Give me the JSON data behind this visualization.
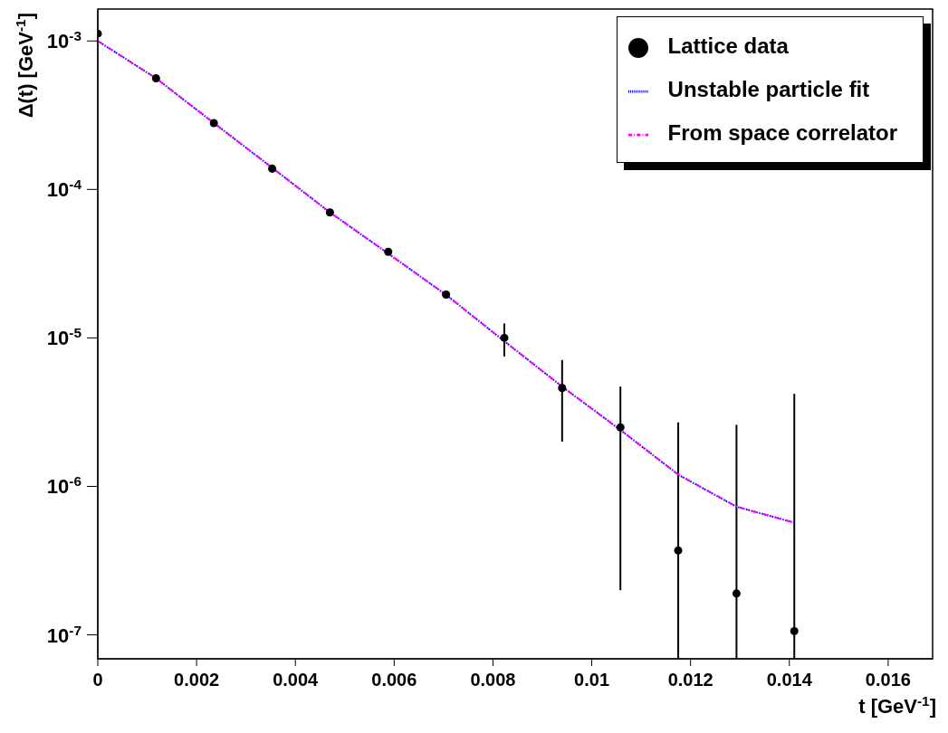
{
  "chart_data": {
    "type": "scatter",
    "xlabel": "t [GeV$^{-1}$]",
    "ylabel": "Δ(t) [GeV$^{-1}$]",
    "log": "y",
    "grid": false,
    "legend": "top right",
    "xlim": [
      0,
      0.0169
    ],
    "ylim": [
      6.9e-08,
      0.00164
    ],
    "xticks": [
      0,
      0.002,
      0.004,
      0.006,
      0.008,
      0.01,
      0.012,
      0.014,
      0.016
    ],
    "yticks": [
      {
        "value": 1e-07,
        "label": "10$^{-7}$"
      },
      {
        "value": 1e-06,
        "label": "10$^{-6}$"
      },
      {
        "value": 1e-05,
        "label": "10$^{-5}$"
      },
      {
        "value": 0.0001,
        "label": "10$^{-4}$"
      },
      {
        "value": 0.001,
        "label": "10$^{-3}$"
      }
    ],
    "series": [
      {
        "name": "Lattice data",
        "color": "#000000",
        "marker": "circle",
        "x": [
          0,
          0.00118,
          0.00235,
          0.00353,
          0.0047,
          0.00588,
          0.00705,
          0.00823,
          0.0094,
          0.01058,
          0.01175,
          0.01293,
          0.0141
        ],
        "values": [
          0.00112,
          0.00056,
          0.00028,
          0.000138,
          7e-05,
          3.8e-05,
          1.96e-05,
          1e-05,
          4.6e-06,
          2.5e-06,
          3.7e-07,
          1.9e-07,
          1.06e-07
        ],
        "errors": [
          null,
          null,
          null,
          null,
          null,
          null,
          null,
          [
            7.5e-06,
            1.25e-05
          ],
          [
            2e-06,
            7.1e-06
          ],
          [
            2e-07,
            4.7e-06
          ],
          [
            6.9e-08,
            2.7e-06
          ],
          [
            6.9e-08,
            2.6e-06
          ],
          [
            6.9e-08,
            4.2e-06
          ]
        ]
      },
      {
        "name": "Unstable particle fit",
        "type": "line",
        "color": "#0000ff",
        "line_style": "dotted",
        "marker": "none",
        "x": [
          0,
          0.00118,
          0.00235,
          0.00353,
          0.0047,
          0.00588,
          0.00705,
          0.00823,
          0.0094,
          0.01058,
          0.01175,
          0.01293,
          0.0141
        ],
        "values": [
          0.001,
          0.00056,
          0.00028,
          0.00014,
          7e-05,
          3.7e-05,
          1.95e-05,
          9.5e-06,
          4.7e-06,
          2.4e-06,
          1.2e-06,
          7.3e-07,
          5.7e-07
        ]
      },
      {
        "name": "From space correlator",
        "type": "line",
        "color": "#ff00ff",
        "line_style": "dashed",
        "marker": "none",
        "x": [
          0,
          0.00118,
          0.00235,
          0.00353,
          0.0047,
          0.00588,
          0.00705,
          0.00823,
          0.0094,
          0.01058,
          0.01175,
          0.01293,
          0.0141
        ],
        "values": [
          0.001,
          0.00056,
          0.00028,
          0.00014,
          7e-05,
          3.7e-05,
          1.95e-05,
          9.5e-06,
          4.7e-06,
          2.4e-06,
          1.2e-06,
          7.3e-07,
          5.7e-07
        ]
      }
    ]
  }
}
